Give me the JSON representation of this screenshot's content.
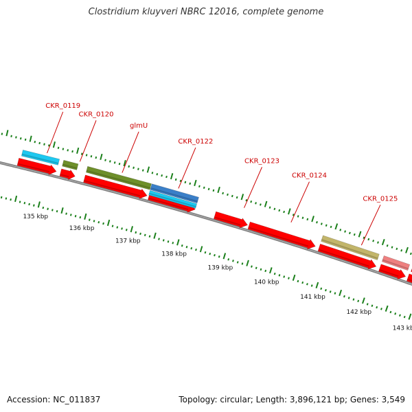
{
  "title": "Clostridium kluyveri NBRC 12016, complete genome",
  "footer": {
    "accession": "Accession: NC_011837",
    "stats": "Topology: circular; Length: 3,896,121 bp; Genes: 3,549"
  },
  "colors": {
    "cds": "#ff0000",
    "backbone": "#7f7f7f",
    "tick": "#1a7f1a",
    "label": "#cc0000",
    "cyan_feature": "#1ec8f0",
    "olive_feature": "#6e8f2a",
    "blue_feature": "#3a7fc8",
    "khaki_feature": "#c2b56a",
    "pink_feature": "#ee8080"
  },
  "scale": {
    "unit": "kbp",
    "ticks": [
      {
        "kbp": 135,
        "label": "135 kbp"
      },
      {
        "kbp": 136,
        "label": "136 kbp"
      },
      {
        "kbp": 137,
        "label": "137 kbp"
      },
      {
        "kbp": 138,
        "label": "138 kbp"
      },
      {
        "kbp": 139,
        "label": "139 kbp"
      },
      {
        "kbp": 140,
        "label": "140 kbp"
      },
      {
        "kbp": 141,
        "label": "141 kbp"
      },
      {
        "kbp": 142,
        "label": "142 kbp"
      },
      {
        "kbp": 143,
        "label": "143 kbp"
      }
    ]
  },
  "gene_labels": [
    {
      "text": "CKR_0119",
      "pos_kbp": 134.9
    },
    {
      "text": "CKR_0120",
      "pos_kbp": 135.6
    },
    {
      "text": "glmU",
      "pos_kbp": 136.5
    },
    {
      "text": "CKR_0122",
      "pos_kbp": 137.7
    },
    {
      "text": "CKR_0123",
      "pos_kbp": 139.1
    },
    {
      "text": "CKR_0124",
      "pos_kbp": 140.1
    },
    {
      "text": "CKR_0125",
      "pos_kbp": 141.6
    }
  ],
  "features": [
    {
      "track": "gene",
      "start_kbp": 134.36,
      "end_kbp": 135.18,
      "color": "cds"
    },
    {
      "track": "gene",
      "start_kbp": 135.27,
      "end_kbp": 135.58,
      "color": "cds"
    },
    {
      "track": "gene",
      "start_kbp": 135.78,
      "end_kbp": 137.12,
      "color": "cds"
    },
    {
      "track": "gene",
      "start_kbp": 137.16,
      "end_kbp": 138.15,
      "color": "cds"
    },
    {
      "track": "gene",
      "start_kbp": 138.57,
      "end_kbp": 139.27,
      "color": "cds"
    },
    {
      "track": "gene",
      "start_kbp": 139.3,
      "end_kbp": 140.72,
      "color": "cds"
    },
    {
      "track": "gene",
      "start_kbp": 140.8,
      "end_kbp": 142.02,
      "color": "cds"
    },
    {
      "track": "gene",
      "start_kbp": 142.1,
      "end_kbp": 142.65,
      "color": "cds"
    },
    {
      "track": "gene",
      "start_kbp": 142.7,
      "end_kbp": 143.2,
      "color": "cds"
    },
    {
      "track": "product1",
      "start_kbp": 134.4,
      "end_kbp": 135.18,
      "color": "cyan_feature"
    },
    {
      "track": "product1",
      "start_kbp": 135.27,
      "end_kbp": 135.58,
      "color": "olive_feature"
    },
    {
      "track": "product1",
      "start_kbp": 135.78,
      "end_kbp": 137.14,
      "color": "olive_feature"
    },
    {
      "track": "product1",
      "start_kbp": 137.15,
      "end_kbp": 138.15,
      "color": "blue_feature"
    },
    {
      "track": "product2",
      "start_kbp": 137.15,
      "end_kbp": 138.15,
      "color": "cyan_feature"
    },
    {
      "track": "product1",
      "start_kbp": 140.8,
      "end_kbp": 142.0,
      "color": "khaki_feature"
    },
    {
      "track": "product1",
      "start_kbp": 142.1,
      "end_kbp": 142.65,
      "color": "pink_feature"
    },
    {
      "track": "product1",
      "start_kbp": 142.72,
      "end_kbp": 143.2,
      "color": "cds"
    }
  ]
}
